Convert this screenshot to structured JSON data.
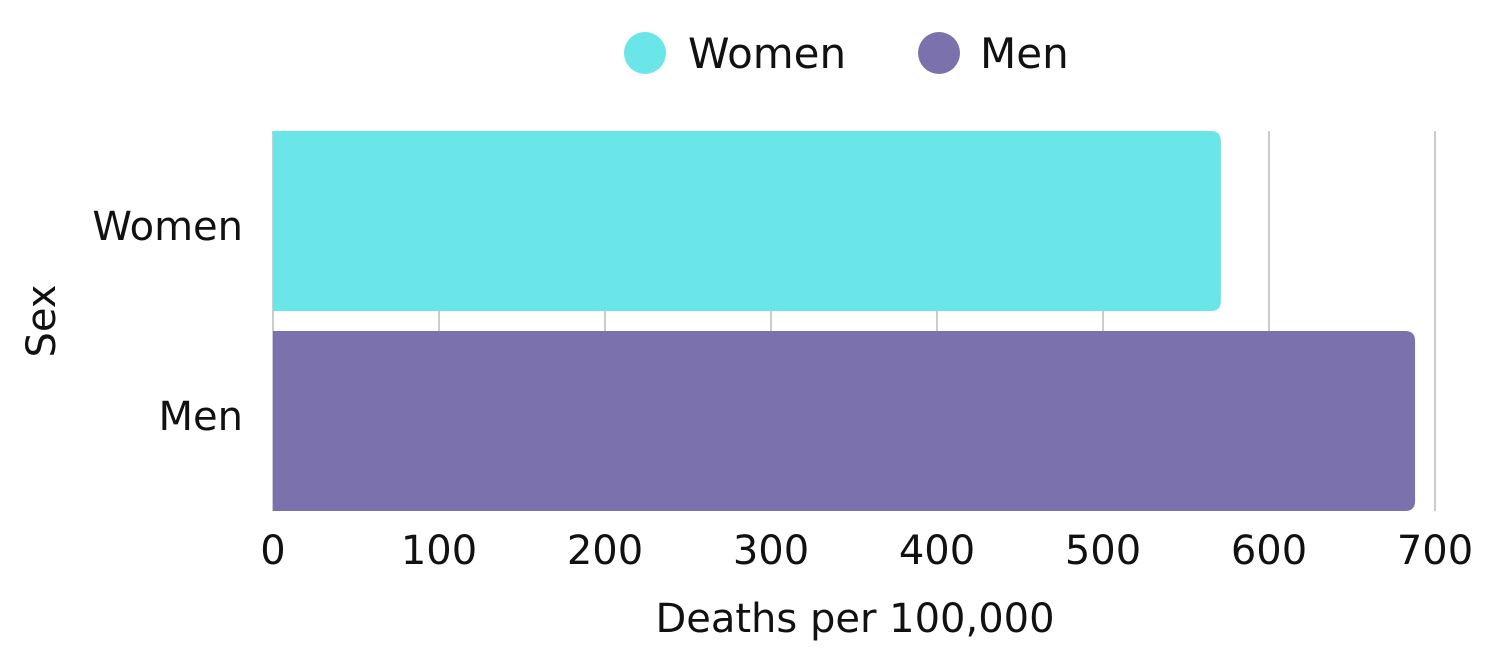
{
  "chart_data": {
    "type": "bar",
    "orientation": "horizontal",
    "categories": [
      "Women",
      "Men"
    ],
    "series": [
      {
        "name": "Women",
        "values": [
          571,
          null
        ],
        "color": "#6AE5E8"
      },
      {
        "name": "Men",
        "values": [
          null,
          688
        ],
        "color": "#7B72AD"
      }
    ],
    "xlabel": "Deaths per 100,000",
    "ylabel": "Sex",
    "xlim": [
      0,
      700
    ],
    "xticks": [
      0,
      100,
      200,
      300,
      400,
      500,
      600,
      700
    ],
    "grid": true,
    "legend_position": "top"
  }
}
